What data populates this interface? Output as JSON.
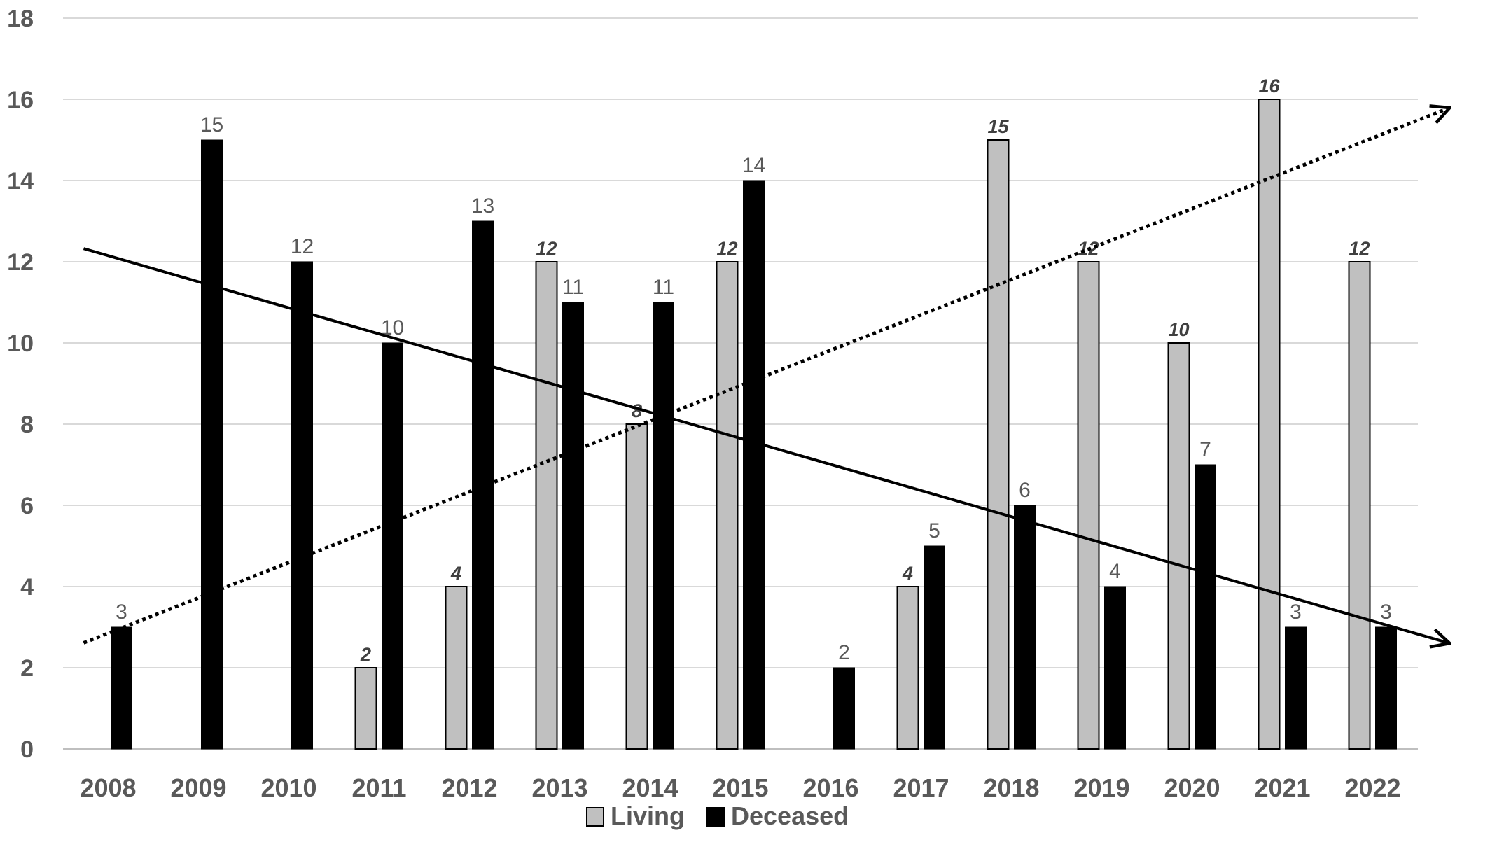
{
  "chart_data": {
    "type": "bar",
    "categories": [
      "2008",
      "2009",
      "2010",
      "2011",
      "2012",
      "2013",
      "2014",
      "2015",
      "2016",
      "2017",
      "2018",
      "2019",
      "2020",
      "2021",
      "2022"
    ],
    "series": [
      {
        "name": "Living",
        "values": [
          0,
          0,
          0,
          2,
          4,
          12,
          8,
          12,
          0,
          4,
          15,
          12,
          10,
          16,
          12
        ],
        "color": "#c0c0c0",
        "labels": [
          "",
          "",
          "",
          "2",
          "4",
          "12",
          "8",
          "12",
          "",
          "4",
          "15",
          "12",
          "10",
          "16",
          "12"
        ]
      },
      {
        "name": "Deceased",
        "values": [
          3,
          15,
          12,
          10,
          13,
          11,
          11,
          14,
          2,
          5,
          6,
          4,
          7,
          3,
          3
        ],
        "color": "#000000",
        "labels": [
          "3",
          "15",
          "12",
          "10",
          "13",
          "11",
          "11",
          "14",
          "2",
          "5",
          "6",
          "4",
          "7",
          "3",
          "3"
        ]
      }
    ],
    "y_ticks": [
      "0",
      "2",
      "4",
      "6",
      "8",
      "10",
      "12",
      "14",
      "16",
      "18"
    ],
    "ylim": [
      0,
      18
    ],
    "grid": true,
    "legend_position": "bottom",
    "trend_lines": [
      {
        "series": "Living",
        "style": "dotted",
        "start": {
          "x": "2008",
          "y": 2.85
        },
        "end": {
          "x": "2022",
          "y": 15.05
        }
      },
      {
        "series": "Deceased",
        "style": "solid",
        "start": {
          "x": "2008",
          "y": 12.15
        },
        "end": {
          "x": "2022",
          "y": 3.15
        }
      }
    ]
  }
}
